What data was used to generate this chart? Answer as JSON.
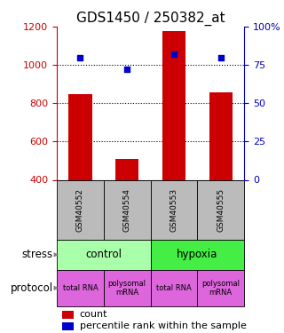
{
  "title": "GDS1450 / 250382_at",
  "samples": [
    "GSM40552",
    "GSM40554",
    "GSM40553",
    "GSM40555"
  ],
  "counts": [
    848,
    510,
    1175,
    858
  ],
  "percentiles": [
    80,
    72,
    82,
    80
  ],
  "ylim_left": [
    400,
    1200
  ],
  "ylim_right": [
    0,
    100
  ],
  "yticks_left": [
    400,
    600,
    800,
    1000,
    1200
  ],
  "yticks_right": [
    0,
    25,
    50,
    75,
    100
  ],
  "ytick_labels_right": [
    "0",
    "25",
    "50",
    "75",
    "100%"
  ],
  "bar_color": "#cc0000",
  "dot_color": "#0000cc",
  "bar_bottom": 400,
  "stress_groups": [
    {
      "label": "control",
      "cols": [
        0,
        1
      ],
      "color": "#aaffaa"
    },
    {
      "label": "hypoxia",
      "cols": [
        2,
        3
      ],
      "color": "#44ee44"
    }
  ],
  "protocol_labels": [
    "total RNA",
    "polysomal\nmRNA",
    "total RNA",
    "polysomal\nmRNA"
  ],
  "protocol_color": "#dd66dd",
  "sample_bg_color": "#bbbbbb",
  "legend_count_color": "#cc0000",
  "legend_pct_color": "#0000cc",
  "left_axis_color": "#cc0000",
  "right_axis_color": "#0000bb",
  "title_fontsize": 11,
  "fig_width": 3.2,
  "fig_height": 3.75,
  "fig_dpi": 100
}
